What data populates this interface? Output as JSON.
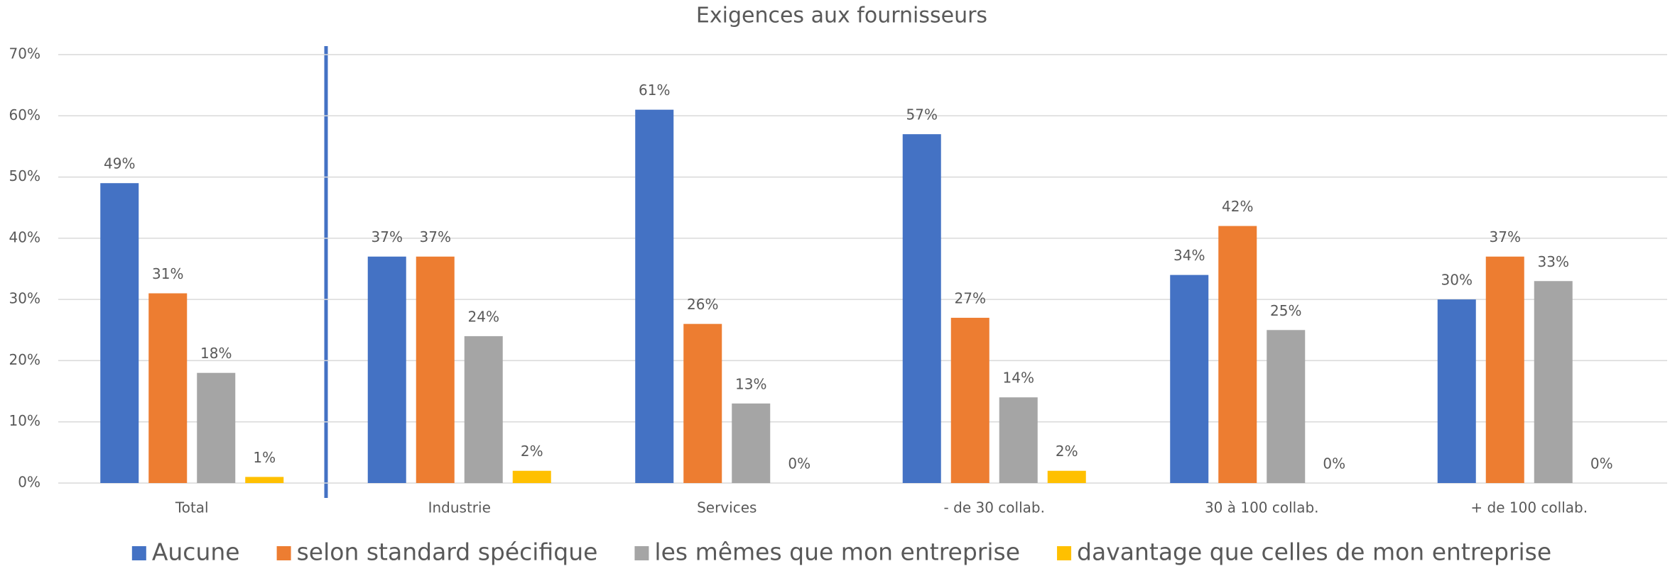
{
  "chart_data": {
    "type": "bar",
    "title": "Exigences aux fournisseurs",
    "categories": [
      "Total",
      "Industrie",
      "Services",
      "- de 30 collab.",
      "30 à 100 collab.",
      "+ de 100 collab."
    ],
    "series": [
      {
        "name": "Aucune",
        "color": "#4472c4",
        "values": [
          49,
          37,
          61,
          57,
          34,
          30
        ],
        "value_labels": [
          "49%",
          "37%",
          "61%",
          "57%",
          "34%",
          "30%"
        ]
      },
      {
        "name": "selon standard spécifique",
        "color": "#ed7d31",
        "values": [
          31,
          37,
          26,
          27,
          42,
          37
        ],
        "value_labels": [
          "31%",
          "37%",
          "26%",
          "27%",
          "42%",
          "37%"
        ]
      },
      {
        "name": "les mêmes que mon entreprise",
        "color": "#a5a5a5",
        "values": [
          18,
          24,
          13,
          14,
          25,
          33
        ],
        "value_labels": [
          "18%",
          "24%",
          "13%",
          "14%",
          "25%",
          "33%"
        ]
      },
      {
        "name": "davantage que celles de mon entreprise",
        "color": "#ffc000",
        "values": [
          1,
          2,
          0,
          2,
          0,
          0
        ],
        "value_labels": [
          "1%",
          "2%",
          "0%",
          "2%",
          "0%",
          "0%"
        ]
      }
    ],
    "ylim": [
      0,
      70
    ],
    "yticks": [
      {
        "value": 0,
        "label": "0%"
      },
      {
        "value": 10,
        "label": "10%"
      },
      {
        "value": 20,
        "label": "20%"
      },
      {
        "value": 30,
        "label": "30%"
      },
      {
        "value": 40,
        "label": "40%"
      },
      {
        "value": 50,
        "label": "50%"
      },
      {
        "value": 60,
        "label": "60%"
      },
      {
        "value": 70,
        "label": "70%"
      }
    ],
    "grid": true,
    "legend": "bottom"
  }
}
